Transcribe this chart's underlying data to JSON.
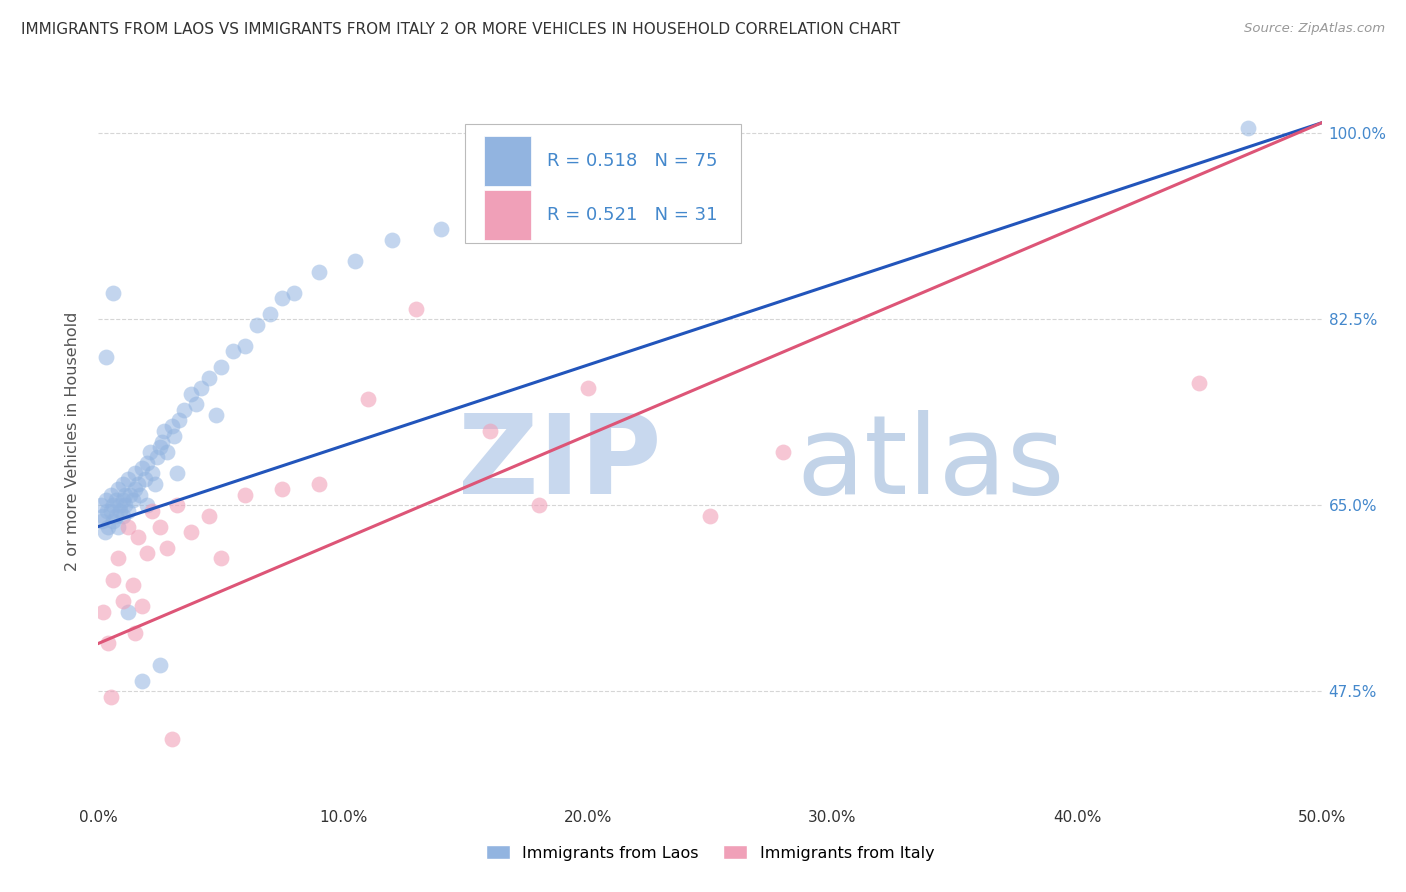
{
  "title": "IMMIGRANTS FROM LAOS VS IMMIGRANTS FROM ITALY 2 OR MORE VEHICLES IN HOUSEHOLD CORRELATION CHART",
  "source": "Source: ZipAtlas.com",
  "ylabel": "2 or more Vehicles in Household",
  "xlim": [
    0.0,
    50.0
  ],
  "ylim": [
    37.0,
    105.0
  ],
  "xtick_labels": [
    "0.0%",
    "10.0%",
    "20.0%",
    "30.0%",
    "40.0%",
    "50.0%"
  ],
  "xtick_values": [
    0,
    10,
    20,
    30,
    40,
    50
  ],
  "ytick_labels": [
    "47.5%",
    "65.0%",
    "82.5%",
    "100.0%"
  ],
  "ytick_values": [
    47.5,
    65.0,
    82.5,
    100.0
  ],
  "legend_labels": [
    "Immigrants from Laos",
    "Immigrants from Italy"
  ],
  "laos_R": 0.518,
  "laos_N": 75,
  "italy_R": 0.521,
  "italy_N": 31,
  "laos_color": "#92b4e0",
  "italy_color": "#f0a0b8",
  "laos_line_color": "#2255bb",
  "italy_line_color": "#dd5577",
  "background_color": "#ffffff",
  "grid_color": "#cccccc",
  "watermark_zip_color": "#c8d8ee",
  "watermark_atlas_color": "#b8cce4",
  "title_color": "#333333",
  "axis_label_color": "#555555",
  "ytick_color": "#4488cc",
  "source_color": "#999999",
  "laos_line_x0": 0,
  "laos_line_y0": 63.0,
  "laos_line_x1": 50,
  "laos_line_y1": 101.0,
  "italy_line_x0": 0,
  "italy_line_y0": 52.0,
  "italy_line_x1": 50,
  "italy_line_y1": 101.0
}
